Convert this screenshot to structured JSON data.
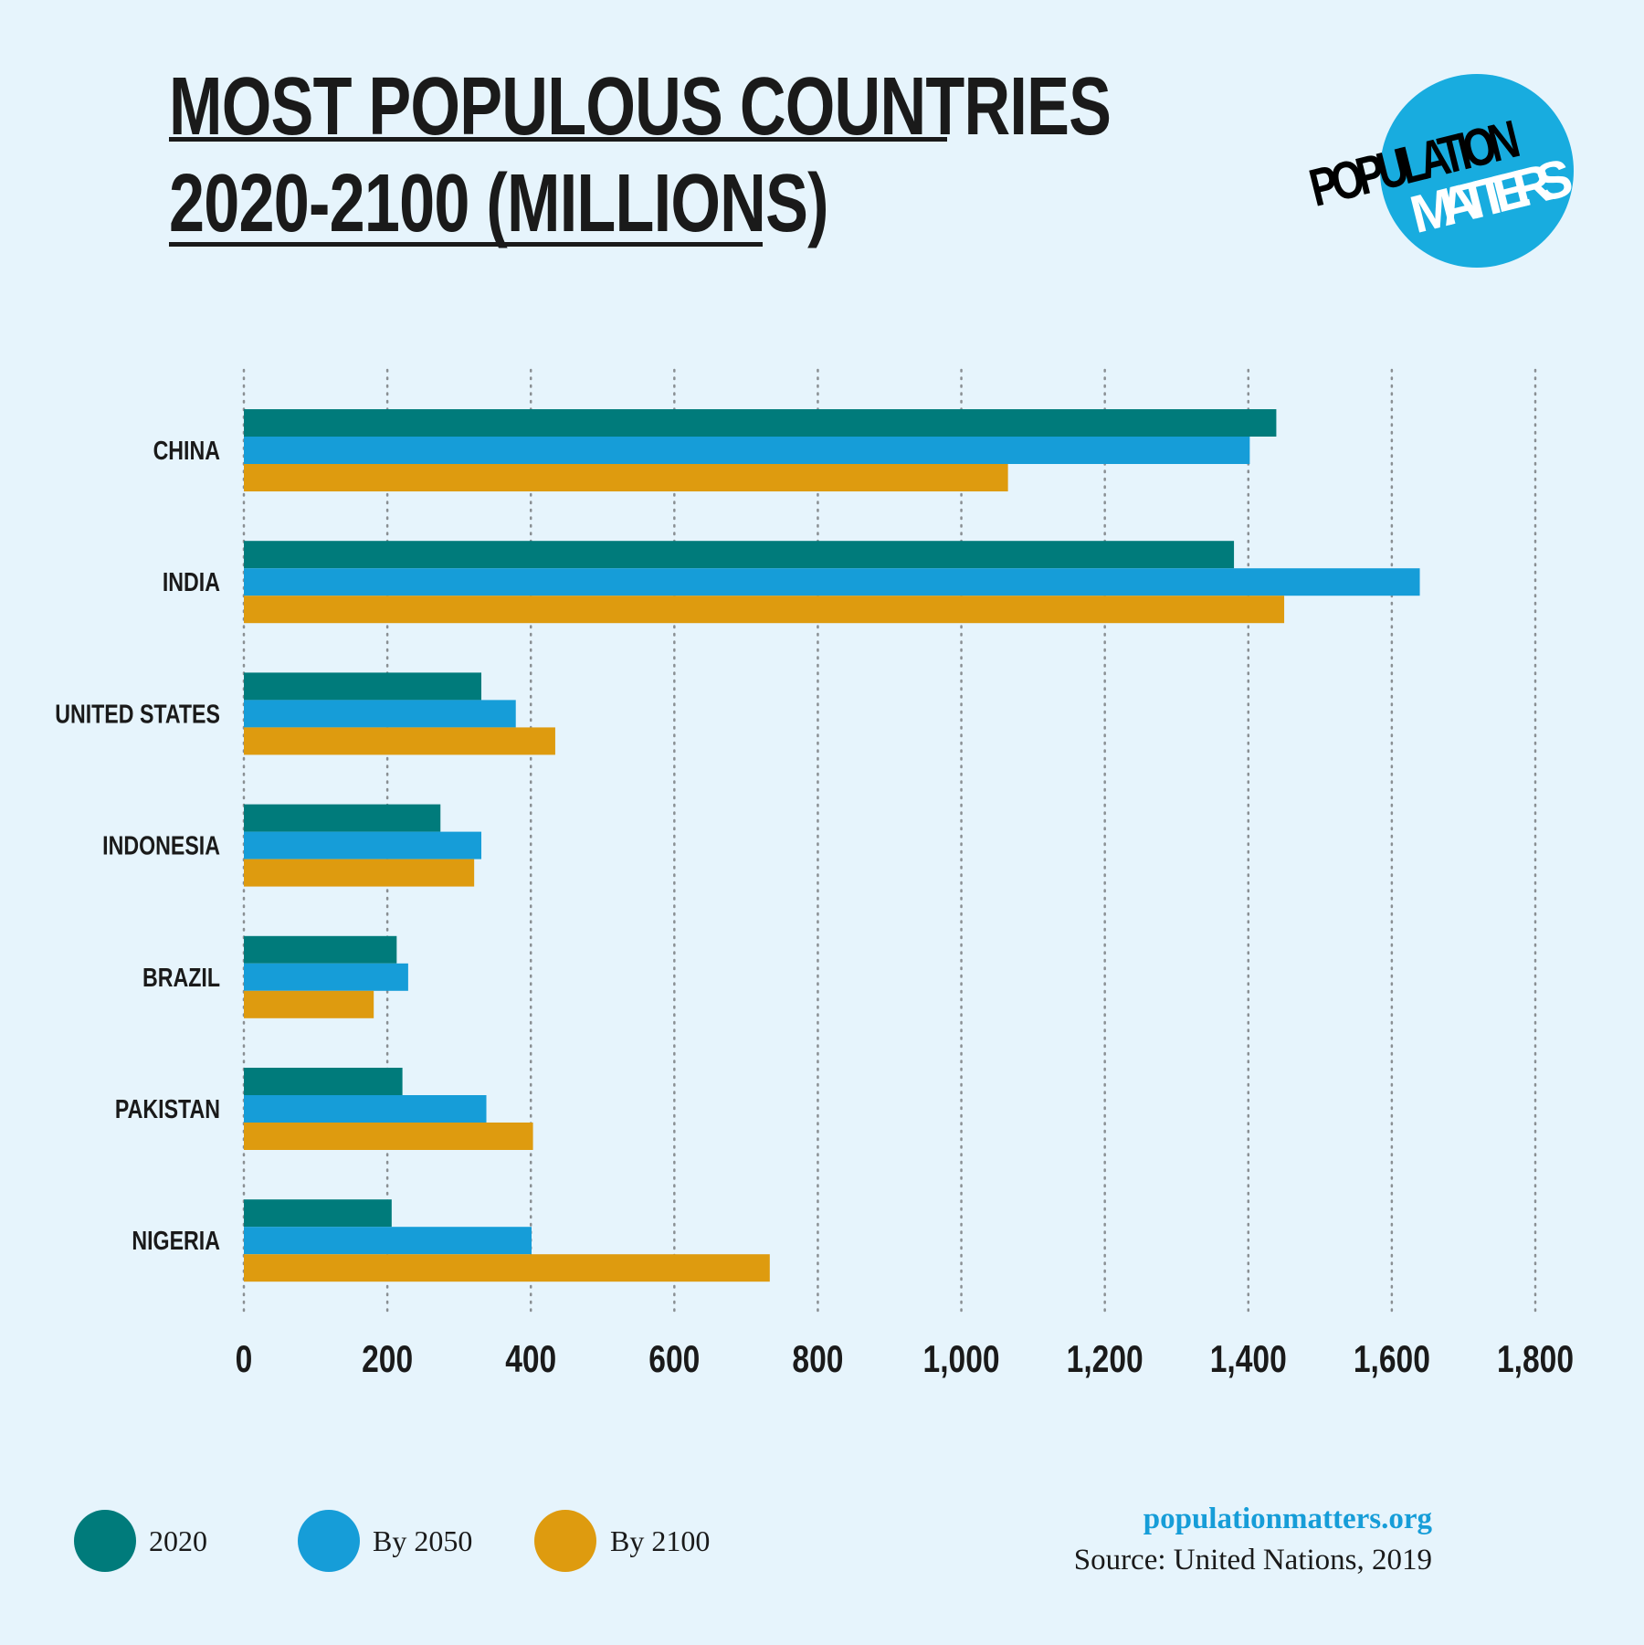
{
  "title": {
    "line1": "MOST POPULOUS COUNTRIES",
    "line2": "2020-2100 (MILLIONS)"
  },
  "logo": {
    "line1": "POPULATION",
    "line2": "MATTERS"
  },
  "colors": {
    "background": "#e6f4fc",
    "2020": "#007b7b",
    "by2050": "#169dd8",
    "by2100": "#de9b0f",
    "logo_circle": "#18acdf"
  },
  "chart_data": {
    "type": "bar",
    "orientation": "horizontal",
    "categories": [
      "CHINA",
      "INDIA",
      "UNITED STATES",
      "INDONESIA",
      "BRAZIL",
      "PAKISTAN",
      "NIGERIA"
    ],
    "series": [
      {
        "name": "2020",
        "color": "#007b7b",
        "values": [
          1439,
          1380,
          331,
          274,
          213,
          221,
          206
        ]
      },
      {
        "name": "By 2050",
        "color": "#169dd8",
        "values": [
          1402,
          1639,
          379,
          331,
          229,
          338,
          401
        ]
      },
      {
        "name": "By 2100",
        "color": "#de9b0f",
        "values": [
          1065,
          1450,
          434,
          321,
          181,
          403,
          733
        ]
      }
    ],
    "xlim": [
      0,
      1800
    ],
    "xticks": [
      "0",
      "200",
      "400",
      "600",
      "800",
      "1,000",
      "1,200",
      "1,400",
      "1,600",
      "1,800"
    ],
    "grid": "vertical dotted",
    "legend_position": "bottom-left"
  },
  "legend": [
    {
      "label": "2020"
    },
    {
      "label": "By 2050"
    },
    {
      "label": "By 2100"
    }
  ],
  "footer": {
    "website": "populationmatters.org",
    "source": "Source: United Nations, 2019"
  }
}
